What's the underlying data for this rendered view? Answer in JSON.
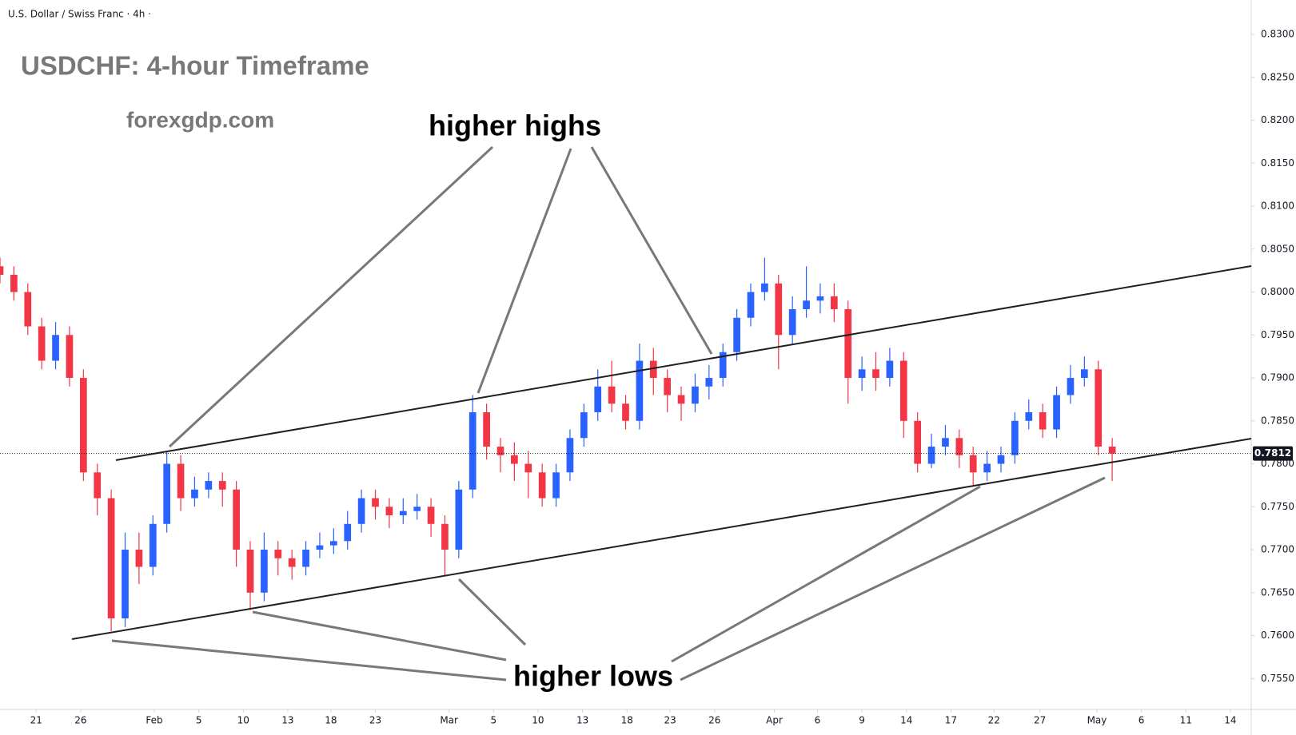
{
  "chart_data": {
    "type": "candlestick",
    "header": "U.S. Dollar / Swiss Franc · 4h ·",
    "title": "USDCHF: 4-hour Timeframe",
    "subtitle": "forexgdp.com",
    "annotations": [
      "higher highs",
      "higher lows"
    ],
    "up_color": "#2962ff",
    "down_color": "#f23645",
    "open": [
      0.803,
      0.802,
      0.8,
      0.796,
      0.792,
      0.795,
      0.79,
      0.779,
      0.776,
      0.762,
      0.77,
      0.768,
      0.773,
      0.78,
      0.776,
      0.777,
      0.778,
      0.777,
      0.77,
      0.765,
      0.77,
      0.769,
      0.768,
      0.77,
      0.7705,
      0.771,
      0.773,
      0.776,
      0.775,
      0.774,
      0.7745,
      0.775,
      0.773,
      0.77,
      0.777,
      0.786,
      0.782,
      0.781,
      0.78,
      0.779,
      0.776,
      0.779,
      0.783,
      0.786,
      0.789,
      0.787,
      0.785,
      0.792,
      0.79,
      0.788,
      0.787,
      0.789,
      0.79,
      0.793,
      0.797,
      0.8,
      0.801,
      0.795,
      0.798,
      0.799,
      0.7995,
      0.798,
      0.79,
      0.791,
      0.79,
      0.792,
      0.785,
      0.78,
      0.782,
      0.783,
      0.781,
      0.779,
      0.78,
      0.781,
      0.785,
      0.786,
      0.784,
      0.788,
      0.79,
      0.791,
      0.782
    ],
    "high": [
      0.804,
      0.803,
      0.801,
      0.797,
      0.7965,
      0.796,
      0.791,
      0.78,
      0.777,
      0.772,
      0.772,
      0.774,
      0.7815,
      0.781,
      0.7785,
      0.779,
      0.779,
      0.778,
      0.771,
      0.772,
      0.771,
      0.77,
      0.771,
      0.772,
      0.7725,
      0.7745,
      0.777,
      0.777,
      0.776,
      0.776,
      0.7765,
      0.776,
      0.774,
      0.778,
      0.788,
      0.787,
      0.783,
      0.7825,
      0.7815,
      0.78,
      0.78,
      0.784,
      0.787,
      0.791,
      0.792,
      0.788,
      0.794,
      0.7935,
      0.791,
      0.789,
      0.7905,
      0.7915,
      0.794,
      0.798,
      0.801,
      0.804,
      0.802,
      0.7995,
      0.803,
      0.801,
      0.801,
      0.799,
      0.7925,
      0.793,
      0.7935,
      0.793,
      0.786,
      0.7835,
      0.7845,
      0.784,
      0.782,
      0.7815,
      0.782,
      0.786,
      0.7875,
      0.787,
      0.789,
      0.7915,
      0.7925,
      0.792,
      0.783
    ],
    "low": [
      0.801,
      0.799,
      0.795,
      0.791,
      0.791,
      0.789,
      0.778,
      0.774,
      0.7605,
      0.761,
      0.766,
      0.767,
      0.772,
      0.7745,
      0.775,
      0.776,
      0.775,
      0.768,
      0.763,
      0.764,
      0.767,
      0.7665,
      0.767,
      0.769,
      0.7695,
      0.77,
      0.772,
      0.7735,
      0.7725,
      0.773,
      0.7735,
      0.7715,
      0.767,
      0.769,
      0.776,
      0.7805,
      0.779,
      0.778,
      0.776,
      0.775,
      0.775,
      0.778,
      0.782,
      0.785,
      0.786,
      0.784,
      0.784,
      0.788,
      0.786,
      0.785,
      0.786,
      0.7875,
      0.789,
      0.792,
      0.796,
      0.799,
      0.791,
      0.794,
      0.797,
      0.7975,
      0.7965,
      0.787,
      0.7885,
      0.7885,
      0.789,
      0.783,
      0.779,
      0.7795,
      0.781,
      0.7795,
      0.7775,
      0.778,
      0.779,
      0.78,
      0.784,
      0.783,
      0.783,
      0.787,
      0.789,
      0.781,
      0.778
    ],
    "close": [
      0.802,
      0.8,
      0.796,
      0.792,
      0.795,
      0.79,
      0.779,
      0.776,
      0.762,
      0.77,
      0.768,
      0.773,
      0.78,
      0.776,
      0.777,
      0.778,
      0.777,
      0.77,
      0.765,
      0.77,
      0.769,
      0.768,
      0.77,
      0.7705,
      0.771,
      0.773,
      0.776,
      0.775,
      0.774,
      0.7745,
      0.775,
      0.773,
      0.77,
      0.777,
      0.786,
      0.782,
      0.781,
      0.78,
      0.779,
      0.776,
      0.779,
      0.783,
      0.786,
      0.789,
      0.787,
      0.785,
      0.792,
      0.79,
      0.788,
      0.787,
      0.789,
      0.79,
      0.793,
      0.797,
      0.8,
      0.801,
      0.795,
      0.798,
      0.799,
      0.7995,
      0.798,
      0.79,
      0.791,
      0.79,
      0.792,
      0.785,
      0.78,
      0.782,
      0.783,
      0.781,
      0.779,
      0.78,
      0.781,
      0.785,
      0.786,
      0.784,
      0.788,
      0.79,
      0.791,
      0.782,
      0.7812
    ],
    "last_price": 0.7812,
    "xlim": [
      0,
      90
    ],
    "xticks": [
      {
        "value": 2.6,
        "label": "21"
      },
      {
        "value": 5.8,
        "label": "26"
      },
      {
        "value": 11.1,
        "label": "Feb"
      },
      {
        "value": 14.3,
        "label": "5"
      },
      {
        "value": 17.5,
        "label": "10"
      },
      {
        "value": 20.7,
        "label": "13"
      },
      {
        "value": 23.8,
        "label": "18"
      },
      {
        "value": 27.0,
        "label": "23"
      },
      {
        "value": 32.3,
        "label": "Mar"
      },
      {
        "value": 35.5,
        "label": "5"
      },
      {
        "value": 38.7,
        "label": "10"
      },
      {
        "value": 41.9,
        "label": "13"
      },
      {
        "value": 45.1,
        "label": "18"
      },
      {
        "value": 48.2,
        "label": "23"
      },
      {
        "value": 51.4,
        "label": "26"
      },
      {
        "value": 55.7,
        "label": "Apr"
      },
      {
        "value": 58.8,
        "label": "6"
      },
      {
        "value": 62.0,
        "label": "9"
      },
      {
        "value": 65.2,
        "label": "14"
      },
      {
        "value": 68.4,
        "label": "17"
      },
      {
        "value": 71.5,
        "label": "22"
      },
      {
        "value": 74.8,
        "label": "27"
      },
      {
        "value": 78.9,
        "label": "May"
      },
      {
        "value": 82.1,
        "label": "6"
      },
      {
        "value": 85.3,
        "label": "11"
      },
      {
        "value": 88.5,
        "label": "14"
      }
    ],
    "ylim": [
      0.7514,
      0.834
    ],
    "yticks": [
      {
        "value": 0.83,
        "label": "0.8300"
      },
      {
        "value": 0.825,
        "label": "0.8250"
      },
      {
        "value": 0.82,
        "label": "0.8200"
      },
      {
        "value": 0.815,
        "label": "0.8150"
      },
      {
        "value": 0.81,
        "label": "0.8100"
      },
      {
        "value": 0.805,
        "label": "0.8050"
      },
      {
        "value": 0.8,
        "label": "0.8000"
      },
      {
        "value": 0.795,
        "label": "0.7950"
      },
      {
        "value": 0.79,
        "label": "0.7900"
      },
      {
        "value": 0.785,
        "label": "0.7850"
      },
      {
        "value": 0.78,
        "label": "0.7800"
      },
      {
        "value": 0.775,
        "label": "0.7750"
      },
      {
        "value": 0.77,
        "label": "0.7700"
      },
      {
        "value": 0.765,
        "label": "0.7650"
      },
      {
        "value": 0.76,
        "label": "0.7600"
      },
      {
        "value": 0.755,
        "label": "0.7550"
      }
    ]
  }
}
